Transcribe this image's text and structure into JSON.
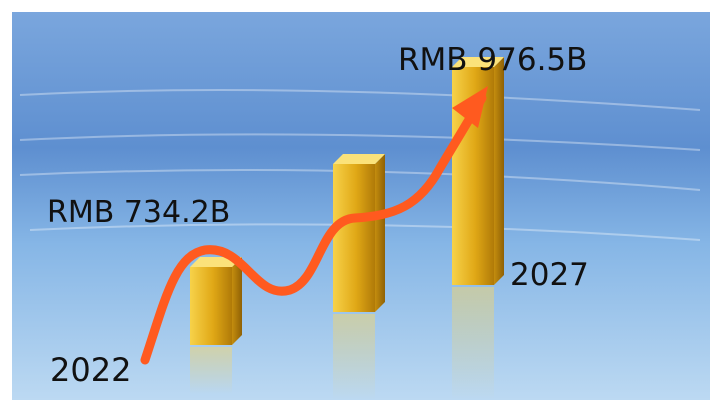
{
  "chart_data": {
    "type": "bar",
    "title": "",
    "xlabel": "",
    "ylabel": "",
    "categories": [
      "2022",
      "2027"
    ],
    "values": [
      734.2,
      976.5
    ],
    "unit": "RMB B",
    "data_labels": [
      "RMB 734.2B",
      "RMB 976.5B"
    ],
    "trend": "rising",
    "colors": {
      "bar": "#e6b422",
      "arrow": "#ff5a1f",
      "background": "#5b86c9"
    }
  }
}
